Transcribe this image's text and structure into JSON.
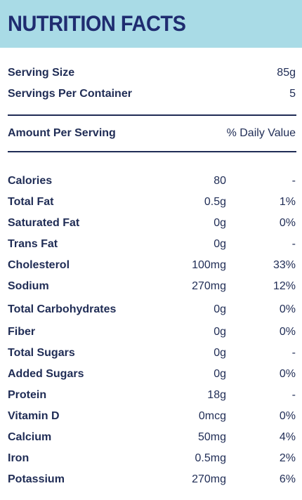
{
  "header": {
    "title": "NUTRITION FACTS"
  },
  "serving": {
    "size_label": "Serving Size",
    "size_value": "85g",
    "servings_label": "Servings Per Container",
    "servings_value": "5"
  },
  "amount_header": {
    "label": "Amount Per Serving",
    "dv_label": "% Daily Value"
  },
  "nutrients": [
    {
      "name": "Calories",
      "amount": "80",
      "dv": "-"
    },
    {
      "name": "Total Fat",
      "amount": "0.5g",
      "dv": "1%"
    },
    {
      "name": "Saturated Fat",
      "amount": "0g",
      "dv": "0%"
    },
    {
      "name": "Trans Fat",
      "amount": "0g",
      "dv": "-"
    },
    {
      "name": "Cholesterol",
      "amount": "100mg",
      "dv": "33%"
    },
    {
      "name": "Sodium",
      "amount": "270mg",
      "dv": "12%"
    },
    {
      "name": "Total Carbohydrates",
      "amount": "0g",
      "dv": "0%"
    },
    {
      "name": "Fiber",
      "amount": "0g",
      "dv": "0%"
    },
    {
      "name": "Total Sugars",
      "amount": "0g",
      "dv": "-"
    },
    {
      "name": "Added Sugars",
      "amount": "0g",
      "dv": "0%"
    },
    {
      "name": "Protein",
      "amount": "18g",
      "dv": "-"
    },
    {
      "name": "Vitamin D",
      "amount": "0mcg",
      "dv": "0%"
    },
    {
      "name": "Calcium",
      "amount": "50mg",
      "dv": "4%"
    },
    {
      "name": "Iron",
      "amount": "0.5mg",
      "dv": "2%"
    },
    {
      "name": "Potassium",
      "amount": "270mg",
      "dv": "6%"
    }
  ],
  "colors": {
    "header_bg": "#a9dbe6",
    "text": "#1f2c55"
  }
}
